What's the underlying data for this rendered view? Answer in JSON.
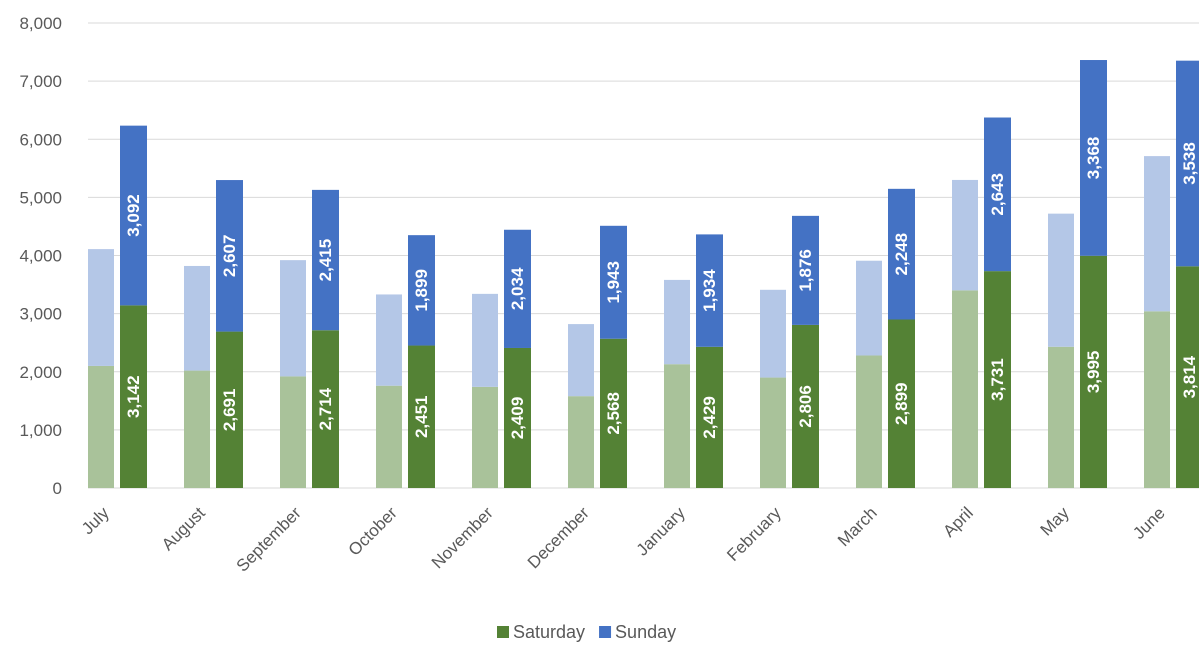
{
  "chart_data": {
    "type": "bar",
    "stacked": true,
    "categories": [
      "July",
      "August",
      "September",
      "October",
      "November",
      "December",
      "January",
      "February",
      "March",
      "April",
      "May",
      "June"
    ],
    "series": [
      {
        "name": "Saturday",
        "values": [
          3142,
          2691,
          2714,
          2451,
          2409,
          2568,
          2429,
          2806,
          2899,
          3731,
          3995,
          3814
        ],
        "color": "#548235"
      },
      {
        "name": "Sunday",
        "values": [
          3092,
          2607,
          2415,
          1899,
          2034,
          1943,
          1934,
          1876,
          2248,
          2643,
          3368,
          3538
        ],
        "color": "#4472C4"
      }
    ],
    "comparison_series": [
      {
        "values": [
          2100,
          2020,
          1920,
          1760,
          1740,
          1580,
          2130,
          1900,
          2280,
          3400,
          2430,
          3040
        ],
        "color": "#A9C29A"
      },
      {
        "values": [
          2010,
          1800,
          2000,
          1570,
          1600,
          1240,
          1450,
          1510,
          1630,
          1900,
          2290,
          2670
        ],
        "color": "#B4C7E7"
      }
    ],
    "y_ticks": [
      "0",
      "1,000",
      "2,000",
      "3,000",
      "4,000",
      "5,000",
      "6,000",
      "7,000",
      "8,000"
    ],
    "ylim": [
      0,
      8000
    ],
    "grid": true,
    "legend_position": "bottom",
    "title": "",
    "xlabel": "",
    "ylabel": ""
  }
}
